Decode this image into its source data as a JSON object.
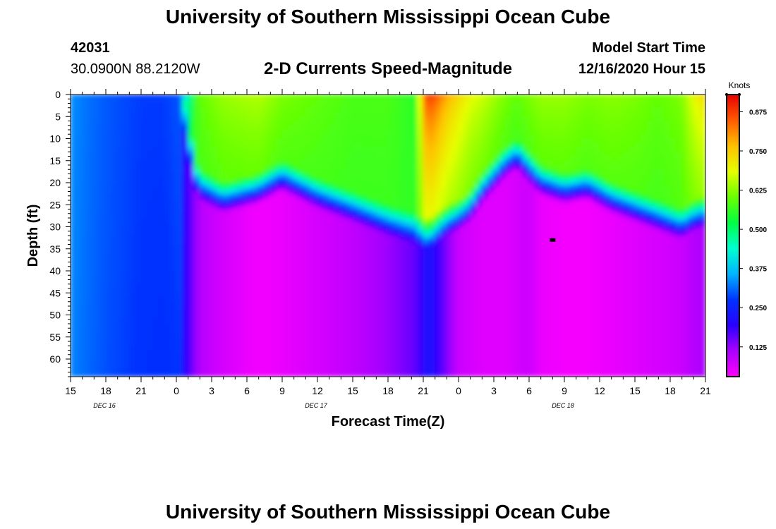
{
  "header": {
    "title": "University of Southern Mississippi Ocean Cube",
    "station_id": "42031",
    "coordinates": "30.0900N 88.2120W",
    "model_start_label": "Model Start Time",
    "model_start_value": "12/16/2020 Hour 15"
  },
  "footer": {
    "title": "University of Southern Mississippi Ocean Cube"
  },
  "chart_data": {
    "type": "heatmap",
    "title": "2-D Currents Speed-Magnitude",
    "xlabel": "Forecast Time(Z)",
    "ylabel": "Depth (ft)",
    "x_ticks": [
      "15",
      "18",
      "21",
      "0",
      "3",
      "6",
      "9",
      "12",
      "15",
      "18",
      "21",
      "0",
      "3",
      "6",
      "9",
      "12",
      "15",
      "18",
      "21"
    ],
    "date_labels": [
      {
        "label": "DEC 16",
        "tick_index": 1
      },
      {
        "label": "DEC 17",
        "tick_index": 7
      },
      {
        "label": "DEC 18",
        "tick_index": 14
      }
    ],
    "x_range_hours": [
      0,
      54
    ],
    "y_ticks": [
      0,
      5,
      10,
      15,
      20,
      25,
      30,
      35,
      40,
      45,
      50,
      55,
      60
    ],
    "y_range": [
      0,
      64
    ],
    "colorbar": {
      "unit": "Knots",
      "range": [
        0.03,
        0.93
      ],
      "ticks": [
        0.125,
        0.25,
        0.375,
        0.5,
        0.625,
        0.75,
        0.875
      ],
      "tick_labels": [
        "0.125",
        "0.250",
        "0.375",
        "0.500",
        "0.625",
        "0.750",
        "0.875"
      ],
      "colors": [
        "#ff00ff",
        "#aa00ff",
        "#2a00ff",
        "#0033ff",
        "#00b4ff",
        "#00ffd0",
        "#00ff44",
        "#6aff00",
        "#e6ff00",
        "#ffc000",
        "#ff5a00",
        "#e60000"
      ]
    },
    "columns_hours": [
      0,
      0.5,
      1,
      3,
      6,
      8,
      9.5,
      10,
      10.5,
      11,
      13,
      16,
      18,
      21,
      24,
      27,
      29.5,
      30,
      30.5,
      31,
      32,
      33,
      34,
      35,
      37,
      38,
      39,
      40,
      42,
      44,
      46,
      48,
      50,
      52,
      53,
      54
    ],
    "top_speed": [
      0.33,
      0.33,
      0.32,
      0.3,
      0.28,
      0.28,
      0.3,
      0.4,
      0.56,
      0.6,
      0.64,
      0.66,
      0.62,
      0.6,
      0.58,
      0.58,
      0.55,
      0.85,
      0.9,
      0.88,
      0.8,
      0.75,
      0.7,
      0.68,
      0.62,
      0.6,
      0.62,
      0.64,
      0.64,
      0.62,
      0.63,
      0.62,
      0.6,
      0.62,
      0.7,
      0.75
    ],
    "surface_layer_depth_ft": [
      0,
      0,
      0,
      0,
      0,
      0,
      0,
      5,
      14,
      17,
      20,
      18,
      15,
      19,
      22,
      25,
      27,
      28,
      28,
      27,
      25,
      24,
      22,
      18,
      12,
      10,
      13,
      16,
      18,
      17,
      20,
      22,
      24,
      26,
      24,
      23
    ],
    "deep_speed": [
      0.32,
      0.3,
      0.3,
      0.28,
      0.25,
      0.23,
      0.22,
      0.18,
      0.14,
      0.1,
      0.07,
      0.04,
      0.05,
      0.07,
      0.09,
      0.12,
      0.16,
      0.2,
      0.22,
      0.2,
      0.14,
      0.08,
      0.07,
      0.06,
      0.06,
      0.07,
      0.08,
      0.05,
      0.04,
      0.04,
      0.05,
      0.06,
      0.07,
      0.08,
      0.1,
      0.11
    ],
    "marker": {
      "hour": 41,
      "depth_ft": 33
    }
  }
}
